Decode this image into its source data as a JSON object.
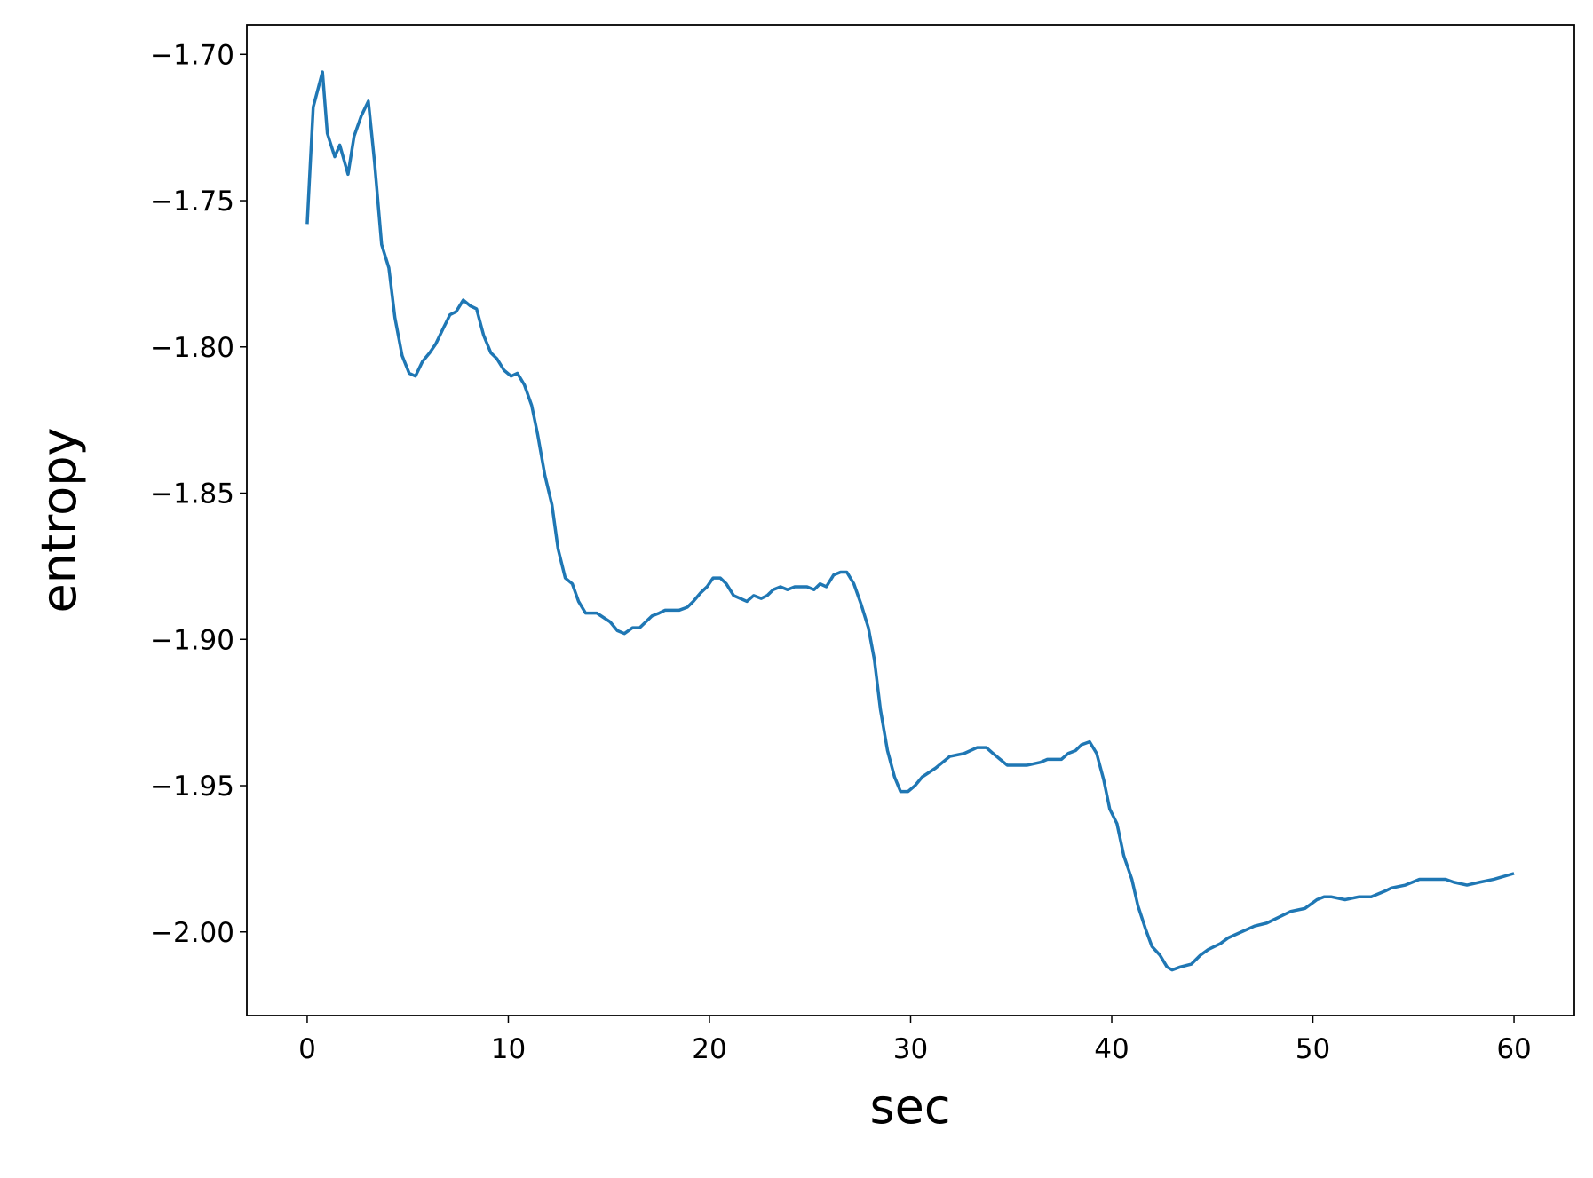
{
  "chart_data": {
    "type": "line",
    "x_label": "sec",
    "y_label": "entropy",
    "xlim": [
      -3,
      63
    ],
    "ylim": [
      -2.0286,
      -1.6899
    ],
    "xticks": [
      0,
      10,
      20,
      30,
      40,
      50,
      60
    ],
    "yticks": [
      {
        "value": -2.0,
        "label": "−2.00"
      },
      {
        "value": -1.95,
        "label": "−1.95"
      },
      {
        "value": -1.9,
        "label": "−1.90"
      },
      {
        "value": -1.85,
        "label": "−1.85"
      },
      {
        "value": -1.8,
        "label": "−1.80"
      },
      {
        "value": -1.75,
        "label": "−1.75"
      },
      {
        "value": -1.7,
        "label": "−1.70"
      }
    ],
    "grid": false,
    "color": "#1f77b4",
    "x": [
      0,
      0.3,
      0.76,
      1.0,
      1.37,
      1.62,
      2.03,
      2.33,
      2.69,
      3.04,
      3.35,
      3.7,
      4.06,
      4.36,
      4.72,
      5.07,
      5.38,
      5.73,
      6.09,
      6.39,
      6.74,
      7.1,
      7.4,
      7.76,
      8.11,
      8.42,
      8.77,
      9.13,
      9.43,
      9.79,
      10.14,
      10.45,
      10.8,
      11.16,
      11.46,
      11.82,
      12.17,
      12.47,
      12.83,
      13.18,
      13.49,
      13.84,
      14.4,
      15.06,
      15.42,
      15.77,
      16.18,
      16.53,
      17.14,
      17.5,
      17.8,
      18.5,
      18.9,
      19.2,
      19.57,
      19.88,
      20.18,
      20.54,
      20.84,
      21.2,
      21.86,
      22.2,
      22.57,
      22.87,
      23.17,
      23.53,
      23.88,
      24.24,
      24.85,
      25.2,
      25.5,
      25.81,
      26.17,
      26.52,
      26.83,
      27.18,
      27.54,
      27.9,
      28.2,
      28.5,
      28.85,
      29.2,
      29.5,
      29.87,
      30.22,
      30.58,
      31.24,
      31.95,
      32.66,
      33.3,
      33.77,
      34.1,
      34.8,
      35.14,
      35.8,
      36.46,
      36.8,
      37.5,
      37.83,
      38.2,
      38.5,
      38.9,
      39.25,
      39.6,
      39.9,
      40.26,
      40.6,
      41.0,
      41.3,
      41.68,
      42.0,
      42.4,
      42.75,
      43.0,
      43.4,
      43.96,
      44.4,
      44.8,
      45.4,
      45.8,
      46.45,
      47.1,
      47.7,
      48.3,
      48.9,
      49.6,
      50.2,
      50.56,
      50.9,
      51.6,
      52.3,
      52.9,
      53.6,
      53.9,
      54.6,
      55.3,
      56.0,
      56.6,
      57.0,
      57.66,
      58.3,
      59.0,
      60.0
    ],
    "values": [
      -1.758,
      -1.718,
      -1.706,
      -1.727,
      -1.735,
      -1.731,
      -1.741,
      -1.728,
      -1.721,
      -1.716,
      -1.737,
      -1.765,
      -1.773,
      -1.79,
      -1.803,
      -1.809,
      -1.81,
      -1.805,
      -1.802,
      -1.799,
      -1.794,
      -1.789,
      -1.788,
      -1.784,
      -1.786,
      -1.787,
      -1.796,
      -1.802,
      -1.804,
      -1.808,
      -1.81,
      -1.809,
      -1.813,
      -1.82,
      -1.83,
      -1.844,
      -1.854,
      -1.869,
      -1.879,
      -1.881,
      -1.887,
      -1.891,
      -1.891,
      -1.894,
      -1.897,
      -1.898,
      -1.896,
      -1.896,
      -1.892,
      -1.891,
      -1.89,
      -1.89,
      -1.889,
      -1.887,
      -1.884,
      -1.882,
      -1.879,
      -1.879,
      -1.881,
      -1.885,
      -1.887,
      -1.885,
      -1.886,
      -1.885,
      -1.883,
      -1.882,
      -1.883,
      -1.882,
      -1.882,
      -1.883,
      -1.881,
      -1.882,
      -1.878,
      -1.877,
      -1.877,
      -1.881,
      -1.888,
      -1.896,
      -1.907,
      -1.924,
      -1.938,
      -1.947,
      -1.952,
      -1.952,
      -1.95,
      -1.947,
      -1.944,
      -1.94,
      -1.939,
      -1.937,
      -1.937,
      -1.939,
      -1.943,
      -1.943,
      -1.943,
      -1.942,
      -1.941,
      -1.941,
      -1.939,
      -1.938,
      -1.936,
      -1.935,
      -1.939,
      -1.948,
      -1.958,
      -1.963,
      -1.974,
      -1.982,
      -1.991,
      -1.999,
      -2.005,
      -2.008,
      -2.012,
      -2.013,
      -2.012,
      -2.011,
      -2.008,
      -2.006,
      -2.004,
      -2.002,
      -2.0,
      -1.998,
      -1.997,
      -1.995,
      -1.993,
      -1.992,
      -1.989,
      -1.988,
      -1.988,
      -1.989,
      -1.988,
      -1.988,
      -1.986,
      -1.985,
      -1.984,
      -1.982,
      -1.982,
      -1.982,
      -1.983,
      -1.984,
      -1.983,
      -1.982,
      -1.98
    ]
  }
}
